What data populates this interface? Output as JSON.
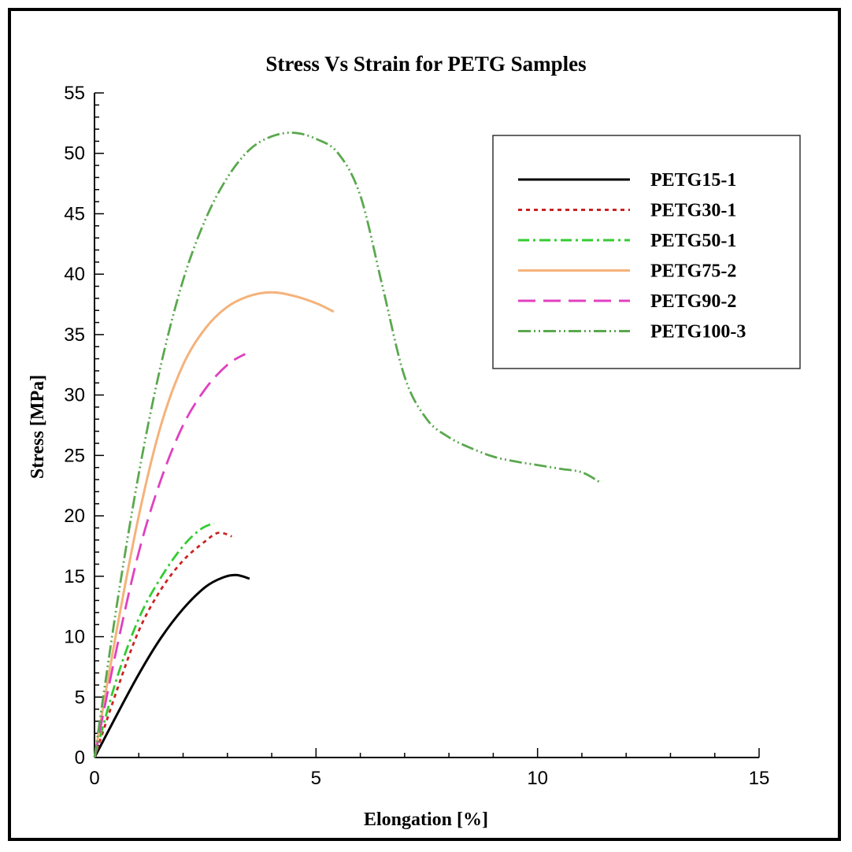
{
  "chart_data": {
    "type": "line",
    "title": "Stress Vs Strain for PETG Samples",
    "xlabel": "Elongation [%]",
    "ylabel": "Stress [MPa]",
    "xlim": [
      0,
      15
    ],
    "ylim": [
      0,
      55
    ],
    "xticks": [
      0,
      5,
      10,
      15
    ],
    "yticks": [
      0,
      5,
      10,
      15,
      20,
      25,
      30,
      35,
      40,
      45,
      50,
      55
    ],
    "grid": false,
    "legend_position": "top-right",
    "series": [
      {
        "name": "PETG15-1",
        "color": "#000000",
        "dash": "solid",
        "x": [
          0,
          0.5,
          1.0,
          1.5,
          2.0,
          2.5,
          2.9,
          3.2,
          3.5
        ],
        "y": [
          0,
          3.5,
          6.9,
          9.9,
          12.3,
          14.1,
          14.9,
          15.1,
          14.8
        ]
      },
      {
        "name": "PETG30-1",
        "color": "#cc2222",
        "dash": "dotted",
        "x": [
          0,
          0.5,
          1.0,
          1.5,
          2.0,
          2.5,
          2.8,
          3.1
        ],
        "y": [
          0,
          5.5,
          10.5,
          13.9,
          16.3,
          17.9,
          18.6,
          18.3
        ]
      },
      {
        "name": "PETG50-1",
        "color": "#33cc33",
        "dash": "dashdot",
        "x": [
          0,
          0.5,
          1.0,
          1.5,
          2.0,
          2.4,
          2.7
        ],
        "y": [
          0,
          6.5,
          11.5,
          14.9,
          17.5,
          18.9,
          19.4
        ]
      },
      {
        "name": "PETG75-2",
        "color": "#f5b27a",
        "dash": "solid",
        "x": [
          0,
          0.5,
          1.0,
          1.5,
          2.0,
          2.5,
          3.0,
          3.5,
          4.0,
          4.5,
          5.0,
          5.4
        ],
        "y": [
          0,
          10.5,
          20.0,
          27.5,
          32.5,
          35.5,
          37.3,
          38.2,
          38.5,
          38.2,
          37.6,
          36.9
        ]
      },
      {
        "name": "PETG90-2",
        "color": "#e040c0",
        "dash": "longdash",
        "x": [
          0,
          0.5,
          1.0,
          1.5,
          2.0,
          2.5,
          3.0,
          3.4
        ],
        "y": [
          0,
          9.0,
          17.0,
          23.0,
          27.5,
          30.5,
          32.5,
          33.4
        ]
      },
      {
        "name": "PETG100-3",
        "color": "#5aa84e",
        "dash": "dashdotdot",
        "x": [
          0,
          0.5,
          1.0,
          1.5,
          2.0,
          2.5,
          3.0,
          3.5,
          4.0,
          4.5,
          5.0,
          5.5,
          6.0,
          6.5,
          7.0,
          7.5,
          8.0,
          8.5,
          9.0,
          9.5,
          10.0,
          10.5,
          11.0,
          11.4
        ],
        "y": [
          0,
          12.5,
          23.5,
          32.5,
          39.5,
          44.5,
          48.0,
          50.3,
          51.4,
          51.7,
          51.2,
          50.0,
          46.5,
          39.0,
          31.5,
          28.0,
          26.5,
          25.6,
          24.9,
          24.5,
          24.2,
          23.9,
          23.6,
          22.8
        ]
      }
    ]
  }
}
